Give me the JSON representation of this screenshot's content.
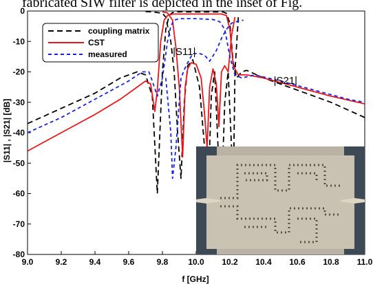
{
  "header_text": "fabricated SIW filter is depicted in the inset of Fig.",
  "chart_data": {
    "type": "line",
    "xlabel": "f [GHz]",
    "ylabel": "|S11| , |S21| [dB]",
    "xlim": [
      9.0,
      11.0
    ],
    "ylim": [
      -80,
      0
    ],
    "xticks": [
      9.0,
      9.2,
      9.4,
      9.6,
      9.8,
      10.0,
      10.2,
      10.4,
      10.6,
      10.8,
      11.0
    ],
    "xtick_labels": [
      "9.0",
      "9.2",
      "9.4",
      "9.6",
      "9.8",
      "10.0",
      "10.2",
      "10.4",
      "10.6",
      "10.8",
      "11.0"
    ],
    "yticks": [
      0,
      -10,
      -20,
      -30,
      -40,
      -50,
      -60,
      -70,
      -80
    ],
    "ytick_labels": [
      "0",
      "-10",
      "-20",
      "-30",
      "-40",
      "-50",
      "-60",
      "-70",
      "-80"
    ],
    "grid": false,
    "legend_position": "top-left",
    "annotations": [
      {
        "text": "|S11|",
        "x": 9.93,
        "y": -14.5
      },
      {
        "text": "|S21|",
        "x": 10.53,
        "y": -24
      }
    ],
    "inset": "photograph of the fabricated SIW filter (bottom-right)",
    "series": [
      {
        "name": "coupling matrix",
        "color": "#000000",
        "dash": "dashed",
        "x": [
          9.0,
          9.2,
          9.4,
          9.55,
          9.65,
          9.7,
          9.74,
          9.77,
          9.8,
          9.82,
          9.84,
          9.86,
          9.88,
          9.9,
          9.92,
          9.935,
          9.95,
          9.98,
          10.02,
          10.06,
          10.1,
          10.14,
          10.16,
          10.18,
          10.2,
          10.22,
          10.24,
          10.27,
          10.3,
          10.4,
          10.6,
          10.8,
          11.0
        ],
        "y": [
          -37,
          -32,
          -27,
          -22,
          -20,
          -21,
          -28,
          -60,
          -20,
          -6,
          -1.5,
          -0.5,
          -0.2,
          -0.3,
          -0.2,
          -0.3,
          -0.3,
          -0.3,
          -0.3,
          -0.3,
          -0.3,
          -0.3,
          -0.3,
          -0.8,
          -4,
          -17,
          -22,
          -20,
          -19.5,
          -22,
          -26,
          -30,
          -35
        ]
      },
      {
        "name": "coupling matrix",
        "color": "#000000",
        "dash": "dashed",
        "x": [
          9.7,
          9.74,
          9.77,
          9.8,
          9.82,
          9.85,
          9.87,
          9.89,
          9.91,
          9.93,
          9.95,
          9.98,
          10.02,
          10.05,
          10.07,
          10.09,
          10.11,
          10.13,
          10.15,
          10.17,
          10.19,
          10.21,
          10.22,
          10.23,
          10.25
        ],
        "y": [
          -0.2,
          -0.3,
          -0.5,
          -0.8,
          -2,
          -10,
          -20,
          -40,
          -55,
          -30,
          -18,
          -16,
          -25,
          -45,
          -62,
          -28,
          -20,
          -45,
          -62,
          -30,
          -20,
          -45,
          -62,
          -20,
          -2
        ]
      },
      {
        "name": "CST",
        "color": "#e8161b",
        "dash": "solid",
        "x": [
          9.0,
          9.2,
          9.4,
          9.55,
          9.65,
          9.7,
          9.73,
          9.755,
          9.77,
          9.79,
          9.81,
          9.83,
          9.86,
          9.9,
          9.95,
          10.0,
          10.05,
          10.1,
          10.15,
          10.18,
          10.2,
          10.22,
          10.25,
          10.3,
          10.4,
          10.6,
          10.8,
          11.0
        ],
        "y": [
          -46,
          -40,
          -34,
          -29,
          -25,
          -23,
          -24,
          -33,
          -26,
          -10,
          -3,
          -1.5,
          -1,
          -1,
          -1,
          -1,
          -1,
          -1,
          -1,
          -1.5,
          -6,
          -18,
          -21,
          -21,
          -22,
          -25,
          -28,
          -30.5
        ]
      },
      {
        "name": "CST",
        "color": "#e8161b",
        "dash": "solid",
        "x": [
          9.8,
          9.83,
          9.86,
          9.88,
          9.9,
          9.92,
          9.935,
          9.95,
          9.97,
          10.0,
          10.03,
          10.05,
          10.065,
          10.08,
          10.1,
          10.12,
          10.135,
          10.15,
          10.17,
          10.19,
          10.21,
          10.23
        ],
        "y": [
          -0.3,
          -0.6,
          -3,
          -12,
          -25,
          -48,
          -25,
          -19,
          -17,
          -17.5,
          -22,
          -34,
          -45,
          -25,
          -19,
          -24,
          -38,
          -20,
          -18,
          -20,
          -8,
          -2
        ]
      },
      {
        "name": "measured",
        "color": "#1522e6",
        "dash": "dashed",
        "x": [
          9.0,
          9.2,
          9.4,
          9.6,
          9.68,
          9.72,
          9.74,
          9.77,
          9.8,
          9.83,
          9.85,
          9.87,
          9.9,
          10.0,
          10.1,
          10.14,
          10.17,
          10.2,
          10.23,
          10.27,
          10.35,
          10.5,
          10.7,
          10.9,
          11.0
        ],
        "y": [
          -40,
          -35,
          -29,
          -23,
          -20,
          -20,
          -23,
          -28,
          -22,
          -10,
          -5,
          -3,
          -2.5,
          -2.5,
          -2.8,
          -3.5,
          -6,
          -15,
          -21,
          -22,
          -21,
          -23,
          -26,
          -29,
          -30
        ]
      },
      {
        "name": "measured",
        "color": "#1522e6",
        "dash": "dashed",
        "x": [
          9.82,
          9.85,
          9.86,
          9.88,
          9.91,
          9.94,
          9.98,
          10.02,
          10.05,
          10.08,
          10.12,
          10.15,
          10.18,
          10.21,
          10.24,
          10.28
        ],
        "y": [
          -22,
          -40,
          -55,
          -45,
          -22,
          -18,
          -14,
          -14,
          -14.5,
          -16.5,
          -13,
          -9,
          -6,
          -4,
          -3.5,
          -3
        ]
      }
    ]
  }
}
